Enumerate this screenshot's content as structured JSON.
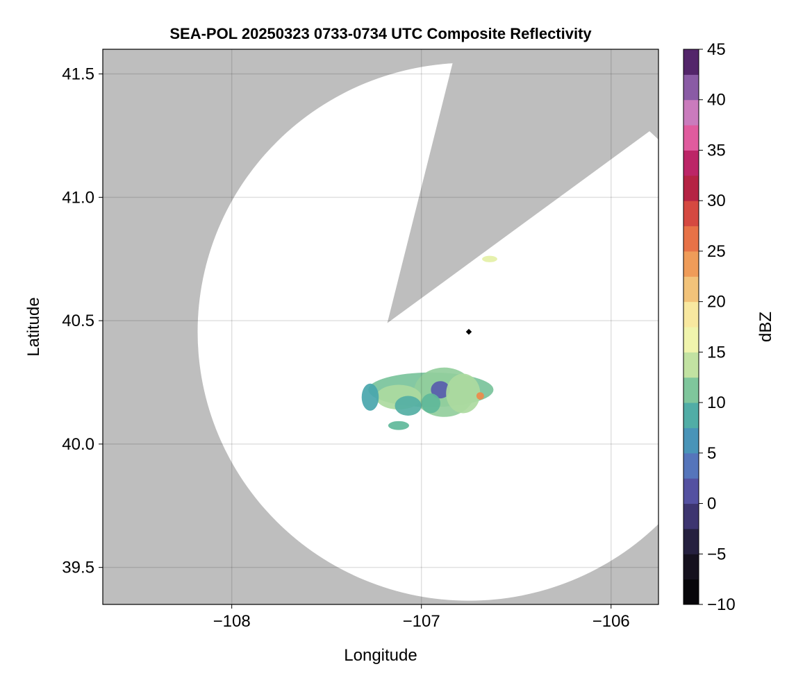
{
  "chart_data": {
    "type": "heatmap",
    "title": "SEA-POL 20250323 0733-0734 UTC Composite Reflectivity",
    "xlabel": "Longitude",
    "ylabel": "Latitude",
    "xlim": [
      -108.68,
      -105.75
    ],
    "ylim": [
      39.35,
      41.6
    ],
    "x_ticks": [
      {
        "value": -108,
        "label": "−108"
      },
      {
        "value": -107,
        "label": "−107"
      },
      {
        "value": -106,
        "label": "−106"
      }
    ],
    "y_ticks": [
      {
        "value": 39.5,
        "label": "39.5"
      },
      {
        "value": 40.0,
        "label": "40.0"
      },
      {
        "value": 40.5,
        "label": "40.5"
      },
      {
        "value": 41.0,
        "label": "41.0"
      },
      {
        "value": 41.5,
        "label": "41.5"
      }
    ],
    "grid": true,
    "background_color": "#bebebe",
    "coverage_color": "#ffffff",
    "radar": {
      "lon": -106.75,
      "lat": 40.455,
      "coverage_radius_lon": 1.43,
      "coverage_radius_lat": 1.09,
      "blocked_sector": {
        "apex": [
          -107.18,
          40.49
        ],
        "edge_points": [
          [
            -106.84,
            41.53
          ],
          [
            -106.06,
            41.12
          ]
        ]
      }
    },
    "echoes": [
      {
        "lon": -106.95,
        "lat": 40.22,
        "rlon": 0.33,
        "rlat": 0.07,
        "dbz": 11
      },
      {
        "lon": -106.88,
        "lat": 40.21,
        "rlon": 0.16,
        "rlat": 0.1,
        "dbz": 12
      },
      {
        "lon": -106.9,
        "lat": 40.22,
        "rlon": 0.05,
        "rlat": 0.035,
        "dbz": 2
      },
      {
        "lon": -106.78,
        "lat": 40.205,
        "rlon": 0.09,
        "rlat": 0.08,
        "dbz": 13
      },
      {
        "lon": -107.12,
        "lat": 40.19,
        "rlon": 0.12,
        "rlat": 0.05,
        "dbz": 13
      },
      {
        "lon": -107.07,
        "lat": 40.155,
        "rlon": 0.07,
        "rlat": 0.04,
        "dbz": 9
      },
      {
        "lon": -107.27,
        "lat": 40.19,
        "rlon": 0.045,
        "rlat": 0.055,
        "dbz": 8
      },
      {
        "lon": -106.95,
        "lat": 40.165,
        "rlon": 0.05,
        "rlat": 0.04,
        "dbz": 10
      },
      {
        "lon": -107.12,
        "lat": 40.075,
        "rlon": 0.055,
        "rlat": 0.018,
        "dbz": 10
      },
      {
        "lon": -106.69,
        "lat": 40.195,
        "rlon": 0.02,
        "rlat": 0.015,
        "dbz": 25
      },
      {
        "lon": -106.64,
        "lat": 40.75,
        "rlon": 0.04,
        "rlat": 0.013,
        "dbz": 15
      }
    ],
    "colorbar": {
      "label": "dBZ",
      "range": [
        -10,
        45
      ],
      "step": 2.5,
      "ticks": [
        {
          "value": -10,
          "label": "−10"
        },
        {
          "value": -5,
          "label": "−5"
        },
        {
          "value": 0,
          "label": "0"
        },
        {
          "value": 5,
          "label": "5"
        },
        {
          "value": 10,
          "label": "10"
        },
        {
          "value": 15,
          "label": "15"
        },
        {
          "value": 20,
          "label": "20"
        },
        {
          "value": 25,
          "label": "25"
        },
        {
          "value": 30,
          "label": "30"
        },
        {
          "value": 35,
          "label": "35"
        },
        {
          "value": 40,
          "label": "40"
        },
        {
          "value": 45,
          "label": "45"
        }
      ],
      "stops": [
        [
          -10,
          "#000000"
        ],
        [
          -5,
          "#1c1628"
        ],
        [
          -2.5,
          "#2d2a56"
        ],
        [
          0,
          "#4c3f8a"
        ],
        [
          2.5,
          "#5b63b7"
        ],
        [
          5,
          "#4e86be"
        ],
        [
          7.5,
          "#43a1b2"
        ],
        [
          10,
          "#5fb89a"
        ],
        [
          12.5,
          "#9fd49d"
        ],
        [
          15,
          "#e4f0a6"
        ],
        [
          17.5,
          "#fbf7b4"
        ],
        [
          20,
          "#f4d98c"
        ],
        [
          22.5,
          "#efad68"
        ],
        [
          25,
          "#ee8a4a"
        ],
        [
          27.5,
          "#e05a44"
        ],
        [
          30,
          "#c9373d"
        ],
        [
          32.5,
          "#a10f4a"
        ],
        [
          35,
          "#d63b84"
        ],
        [
          37.5,
          "#ea7bb7"
        ],
        [
          40,
          "#a97ac2"
        ],
        [
          42.5,
          "#6b3b88"
        ],
        [
          45,
          "#3a0f4b"
        ]
      ]
    }
  }
}
